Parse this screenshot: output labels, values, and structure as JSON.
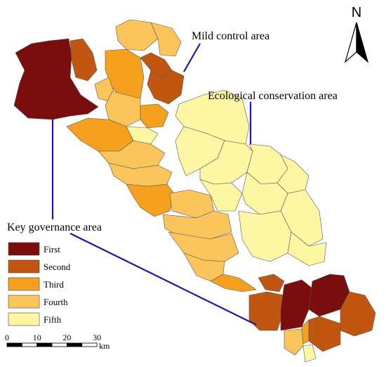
{
  "north_arrow": "N",
  "annotations": [
    "Mild control area",
    "Ecological conservation area",
    "Key governance area"
  ],
  "legend": [
    {
      "label": "First",
      "color": "#7a0d0d"
    },
    {
      "label": "Second",
      "color": "#c0560f"
    },
    {
      "label": "Third",
      "color": "#f5a11f"
    },
    {
      "label": "Fourth",
      "color": "#fcc55c"
    },
    {
      "label": "Fifth",
      "color": "#fdf7a3"
    }
  ],
  "scale_bar": {
    "ticks": [
      "0",
      "10",
      "20",
      "30"
    ],
    "unit": "km"
  }
}
